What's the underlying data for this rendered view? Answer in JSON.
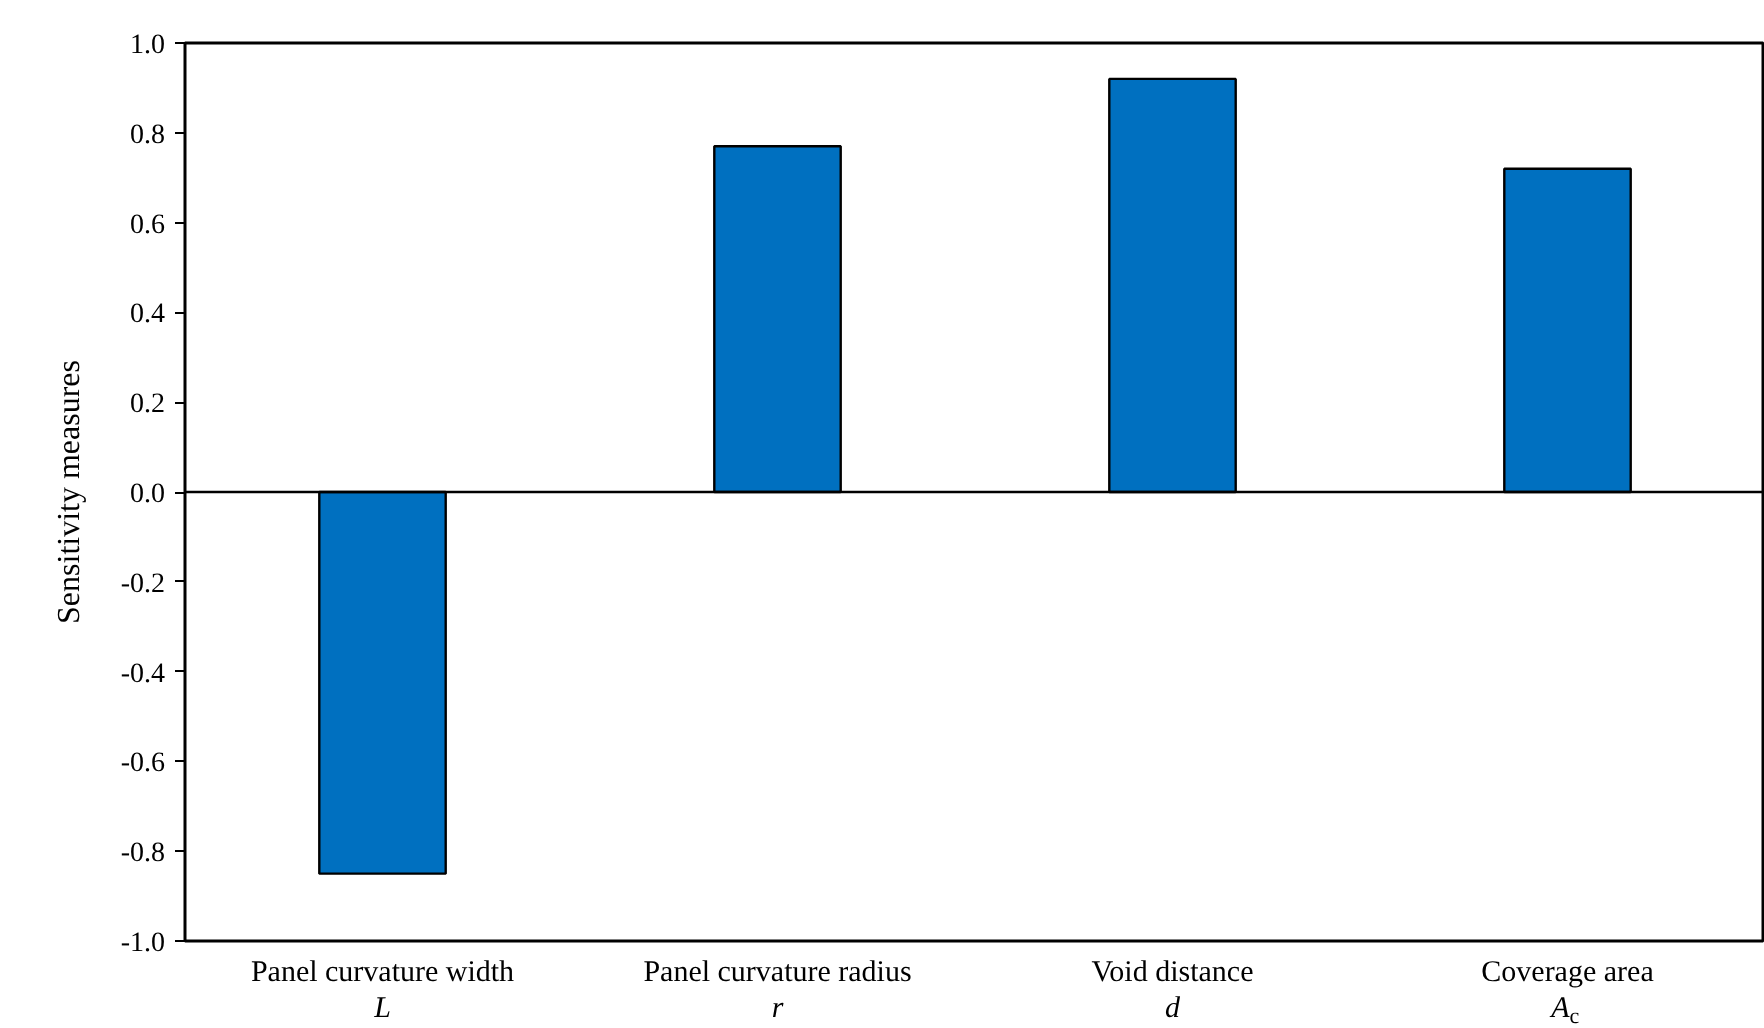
{
  "chart_data": {
    "type": "bar",
    "ylabel": "Sensitivity measures",
    "categories": [
      "Panel curvature width\nL",
      "Panel curvature radius\nr",
      "Void distance\nd",
      "Coverage area\nA$_{c}$"
    ],
    "values": [
      -0.85,
      0.77,
      0.92,
      0.72
    ],
    "color": "#0070c0",
    "yticks": [
      {
        "value": -1.0,
        "label": "-1.0"
      },
      {
        "value": -0.8,
        "label": "-0.8"
      },
      {
        "value": -0.6,
        "label": "-0.6"
      },
      {
        "value": -0.4,
        "label": "-0.4"
      },
      {
        "value": -0.2,
        "label": "-0.2"
      },
      {
        "value": 0.0,
        "label": "0.0"
      },
      {
        "value": 0.2,
        "label": "0.2"
      },
      {
        "value": 0.4,
        "label": "0.4"
      },
      {
        "value": 0.6,
        "label": "0.6"
      },
      {
        "value": 0.8,
        "label": "0.8"
      },
      {
        "value": 1.0,
        "label": "1.0"
      }
    ],
    "ylim": [
      -1.0,
      1.0
    ]
  }
}
